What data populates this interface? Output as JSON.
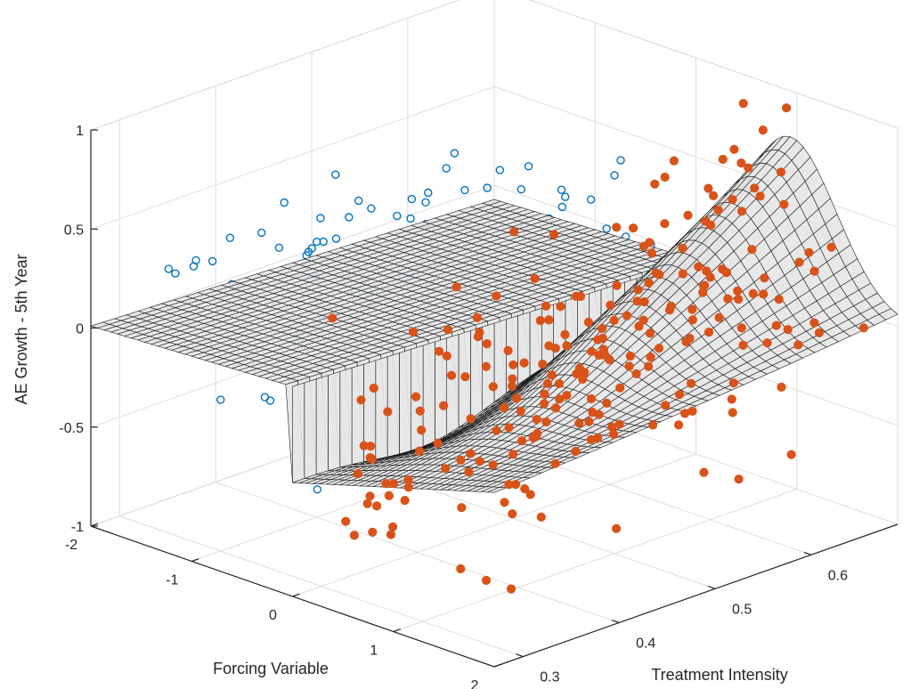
{
  "chart_data": {
    "type": "scatter",
    "subtype": "3d-scatter-with-surface",
    "title": "",
    "xlabel": "Forcing Variable",
    "ylabel": "Treatment Intensity",
    "zlabel": "AE Growth - 5th Year",
    "xlim": [
      -2,
      2
    ],
    "ylim": [
      0.27,
      0.69
    ],
    "zlim": [
      -1,
      1
    ],
    "x_ticks": [
      "-2",
      "-1",
      "0",
      "1",
      "2"
    ],
    "y_ticks": [
      "0.3",
      "0.4",
      "0.5",
      "0.6"
    ],
    "z_ticks": [
      "-1",
      "-0.5",
      "0",
      "0.5",
      "1"
    ],
    "grid": true,
    "surface": {
      "name": "fitted surface",
      "shape": "discontinuous at forcing variable = 0; flat plane for x<0, dip then ridge for x>0 increasing with treatment intensity",
      "x_range": [
        -2,
        2
      ],
      "y_range": [
        0.27,
        0.69
      ],
      "z_range_approx": [
        -0.55,
        0.6
      ]
    },
    "series": [
      {
        "marker": "open-circle",
        "color": "#0072BD",
        "condition": "forcing variable < 0",
        "points_approx_count": 180,
        "z_range_approx": [
          -0.8,
          1.2
        ]
      },
      {
        "marker": "filled-circle",
        "color": "#D95319",
        "condition": "forcing variable >= 0",
        "points_approx_count": 230,
        "z_range_approx": [
          -0.95,
          1.1
        ]
      }
    ]
  },
  "colors": {
    "open_marker": "#0072BD",
    "filled_marker": "#D95319",
    "surface_face": "#e6e6e6",
    "mesh_line": "#1a1a1a",
    "grid": "#dcdcdc",
    "axis": "#262626"
  }
}
